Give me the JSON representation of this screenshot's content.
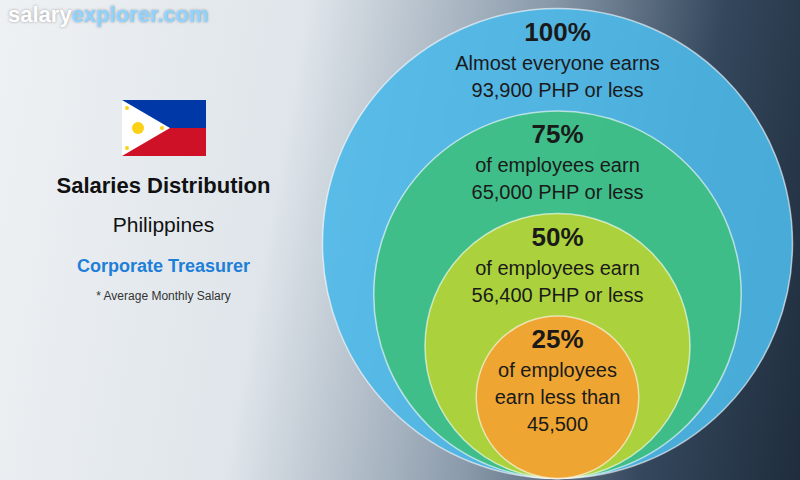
{
  "chart_data": {
    "type": "nested_circles",
    "logo": [
      "salary",
      "explorer.com"
    ],
    "title": "Salaries Distribution",
    "subtitle": "Philippines",
    "job_title": "Corporate Treasurer",
    "note": "* Average Monthly Salary",
    "values": [
      100,
      75,
      50,
      25
    ],
    "value_labels": [
      "100%",
      "75%",
      "50%",
      "25%"
    ],
    "texts": [
      [
        "Almost everyone earns",
        "93,900 PHP or less"
      ],
      [
        "of employees earn",
        "65,000 PHP or less"
      ],
      [
        "of employees earn",
        "56,400 PHP or less"
      ],
      [
        "of employees",
        "earn less than",
        "45,500"
      ]
    ],
    "colors": [
      "#4db8e8",
      "#3dbf80",
      "#b7d434",
      "#f5a031"
    ]
  }
}
